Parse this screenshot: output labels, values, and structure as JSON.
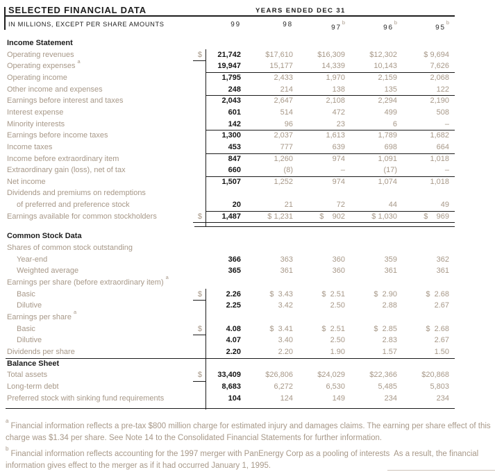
{
  "colors": {
    "bg": "#ffffff",
    "ink": "#1d1d1d",
    "muted": "#a79888",
    "rule": "#1a1a1a",
    "divider": "#ccc3b9"
  },
  "header": {
    "title": "SELECTED FINANCIAL DATA",
    "years_caption": "YEARS ENDED DEC 31",
    "units_caption": "IN MILLIONS, EXCEPT PER SHARE AMOUNTS",
    "columns": [
      {
        "label": "99",
        "sup": ""
      },
      {
        "label": "98",
        "sup": ""
      },
      {
        "label": "97",
        "sup": "b"
      },
      {
        "label": "96",
        "sup": "b"
      },
      {
        "label": "95",
        "sup": "b"
      }
    ]
  },
  "table": {
    "rows": [
      {
        "kind": "section",
        "label": "Income Statement"
      },
      {
        "kind": "data",
        "label": "Operating revenues",
        "dollar": true,
        "values": [
          "21,742",
          "$17,610",
          "$16,309",
          "$12,302",
          "$ 9,694"
        ]
      },
      {
        "kind": "data",
        "label": "Operating expenses",
        "sup": "a",
        "rule": "cols",
        "values": [
          "19,947",
          "15,177",
          "14,339",
          "10,143",
          "7,626"
        ]
      },
      {
        "kind": "data",
        "label": "Operating income",
        "values": [
          "1,795",
          "2,433",
          "1,970",
          "2,159",
          "2,068"
        ]
      },
      {
        "kind": "data",
        "label": "Other income and expenses",
        "rule": "cols",
        "values": [
          "248",
          "214",
          "138",
          "135",
          "122"
        ]
      },
      {
        "kind": "data",
        "label": "Earnings before interest and taxes",
        "values": [
          "2,043",
          "2,647",
          "2,108",
          "2,294",
          "2,190"
        ]
      },
      {
        "kind": "data",
        "label": "Interest expense",
        "values": [
          "601",
          "514",
          "472",
          "499",
          "508"
        ]
      },
      {
        "kind": "data",
        "label": "Minority interests",
        "rule": "cols",
        "values": [
          "142",
          "96",
          "23",
          "6",
          "–"
        ]
      },
      {
        "kind": "data",
        "label": "Earnings before income taxes",
        "values": [
          "1,300",
          "2,037",
          "1,613",
          "1,789",
          "1,682"
        ]
      },
      {
        "kind": "data",
        "label": "Income taxes",
        "rule": "cols",
        "values": [
          "453",
          "777",
          "639",
          "698",
          "664"
        ]
      },
      {
        "kind": "data",
        "label": "Income before extraordinary item",
        "values": [
          "847",
          "1,260",
          "974",
          "1,091",
          "1,018"
        ]
      },
      {
        "kind": "data",
        "label": "Extraordinary gain (loss), net of tax",
        "rule": "cols",
        "values": [
          "660",
          "(8)",
          "–",
          "(17)",
          "–"
        ]
      },
      {
        "kind": "data",
        "label": "Net income",
        "values": [
          "1,507",
          "1,252",
          "974",
          "1,074",
          "1,018"
        ]
      },
      {
        "kind": "subhead",
        "label": "Dividends and premiums on redemptions"
      },
      {
        "kind": "data",
        "label": "of preferred and preference stock",
        "indent": 1,
        "rule": "cols",
        "values": [
          "20",
          "21",
          "72",
          "44",
          "49"
        ]
      },
      {
        "kind": "data",
        "label": "Earnings available for common stockholders",
        "dollar": true,
        "rule": "double",
        "values": [
          "1,487",
          "$ 1,231",
          "$    902",
          "$ 1,030",
          "$    969"
        ]
      },
      {
        "kind": "spacer"
      },
      {
        "kind": "section",
        "label": "Common Stock Data"
      },
      {
        "kind": "subhead",
        "label": "Shares of common stock outstanding"
      },
      {
        "kind": "data",
        "label": "Year-end",
        "indent": 1,
        "values": [
          "366",
          "363",
          "360",
          "359",
          "362"
        ]
      },
      {
        "kind": "data",
        "label": "Weighted average",
        "indent": 1,
        "values": [
          "365",
          "361",
          "360",
          "361",
          "361"
        ]
      },
      {
        "kind": "subhead",
        "label": "Earnings per share (before extraordinary item)",
        "sup": "a"
      },
      {
        "kind": "data",
        "label": "Basic",
        "indent": 1,
        "dollar": true,
        "values": [
          "2.26",
          "$  3.43",
          "$  2.51",
          "$  2.90",
          "$  2.68"
        ]
      },
      {
        "kind": "data",
        "label": "Dilutive",
        "indent": 1,
        "values": [
          "2.25",
          "3.42",
          "2.50",
          "2.88",
          "2.67"
        ]
      },
      {
        "kind": "subhead",
        "label": "Earnings per share",
        "sup": "a"
      },
      {
        "kind": "data",
        "label": "Basic",
        "indent": 1,
        "dollar": true,
        "values": [
          "4.08",
          "$  3.41",
          "$  2.51",
          "$  2.85",
          "$  2.68"
        ]
      },
      {
        "kind": "data",
        "label": "Dilutive",
        "indent": 1,
        "values": [
          "4.07",
          "3.40",
          "2.50",
          "2.83",
          "2.67"
        ]
      },
      {
        "kind": "data",
        "label": "Dividends per share",
        "rule": "full",
        "values": [
          "2.20",
          "2.20",
          "1.90",
          "1.57",
          "1.50"
        ]
      },
      {
        "kind": "section",
        "label": "Balance Sheet"
      },
      {
        "kind": "data",
        "label": "Total assets",
        "dollar": true,
        "values": [
          "33,409",
          "$26,806",
          "$24,029",
          "$22,366",
          "$20,868"
        ]
      },
      {
        "kind": "data",
        "label": "Long-term debt",
        "values": [
          "8,683",
          "6,272",
          "6,530",
          "5,485",
          "5,803"
        ]
      },
      {
        "kind": "data",
        "label": "Preferred stock with sinking fund requirements",
        "values": [
          "104",
          "124",
          "149",
          "234",
          "234"
        ]
      },
      {
        "kind": "spacer6",
        "rule": "full"
      }
    ]
  },
  "footnotes": [
    {
      "marker": "a",
      "text": "Financial information reflects a pre-tax $800 million charge for estimated injury and damages claims. The earning per share effect of this charge was $1.34 per share. See Note 14 to the Consolidated Financial Statements for further information."
    },
    {
      "marker": "b",
      "text": "Financial information reflects accounting for the 1997 merger with PanEnergy Corp as a pooling of interests  As a result, the financial information gives effect to the merger as if it had occurred January 1, 1995."
    }
  ]
}
